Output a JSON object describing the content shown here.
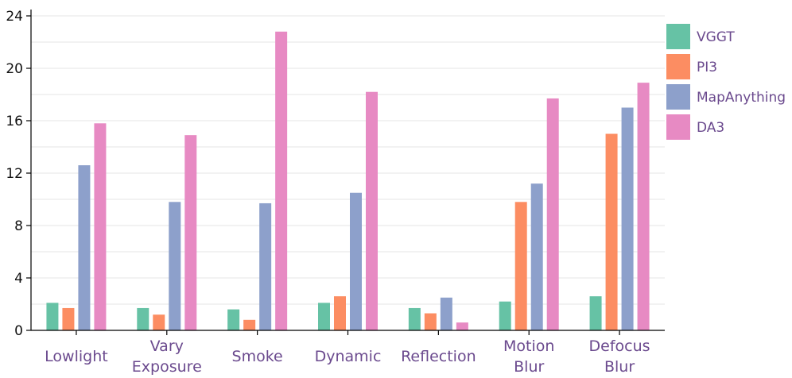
{
  "chart_data": {
    "type": "bar",
    "categories": [
      [
        "Lowlight"
      ],
      [
        "Vary",
        "Exposure"
      ],
      [
        "Smoke"
      ],
      [
        "Dynamic"
      ],
      [
        "Reflection"
      ],
      [
        "Motion",
        "Blur"
      ],
      [
        "Defocus",
        "Blur"
      ]
    ],
    "series": [
      {
        "name": "VGGT",
        "color": "#66c2a5",
        "values": [
          2.1,
          1.7,
          1.6,
          2.1,
          1.7,
          2.2,
          2.6
        ]
      },
      {
        "name": "PI3",
        "color": "#fc8d62",
        "values": [
          1.7,
          1.2,
          0.8,
          2.6,
          1.3,
          9.8,
          15.0
        ]
      },
      {
        "name": "MapAnything",
        "color": "#8da0cb",
        "values": [
          12.6,
          9.8,
          9.7,
          10.5,
          2.5,
          11.2,
          17.0
        ]
      },
      {
        "name": "DA3",
        "color": "#e78ac3",
        "values": [
          15.8,
          14.9,
          22.8,
          18.2,
          0.6,
          17.7,
          18.9
        ]
      }
    ],
    "y_ticks": [
      0,
      4,
      8,
      12,
      16,
      20,
      24
    ],
    "ylim": [
      0,
      24
    ],
    "grid": "horizontal",
    "legend": "right"
  }
}
